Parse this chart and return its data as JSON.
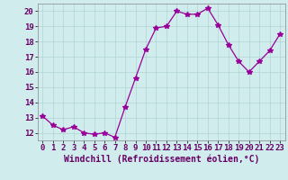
{
  "x": [
    0,
    1,
    2,
    3,
    4,
    5,
    6,
    7,
    8,
    9,
    10,
    11,
    12,
    13,
    14,
    15,
    16,
    17,
    18,
    19,
    20,
    21,
    22,
    23
  ],
  "y": [
    13.1,
    12.5,
    12.2,
    12.4,
    12.0,
    11.9,
    12.0,
    11.7,
    13.7,
    15.6,
    17.5,
    18.9,
    19.0,
    20.0,
    19.8,
    19.8,
    20.2,
    19.1,
    17.8,
    16.7,
    16.0,
    16.7,
    17.4,
    18.5
  ],
  "line_color": "#990099",
  "marker": "*",
  "marker_size": 4,
  "bg_color": "#d0ecec",
  "grid_color": "#b0d4d4",
  "xlabel": "Windchill (Refroidissement éolien,°C)",
  "xlabel_fontsize": 7,
  "tick_fontsize": 6.5,
  "ylim": [
    11.5,
    20.5
  ],
  "xlim": [
    -0.5,
    23.5
  ],
  "yticks": [
    12,
    13,
    14,
    15,
    16,
    17,
    18,
    19,
    20
  ],
  "xticks": [
    0,
    1,
    2,
    3,
    4,
    5,
    6,
    7,
    8,
    9,
    10,
    11,
    12,
    13,
    14,
    15,
    16,
    17,
    18,
    19,
    20,
    21,
    22,
    23
  ]
}
